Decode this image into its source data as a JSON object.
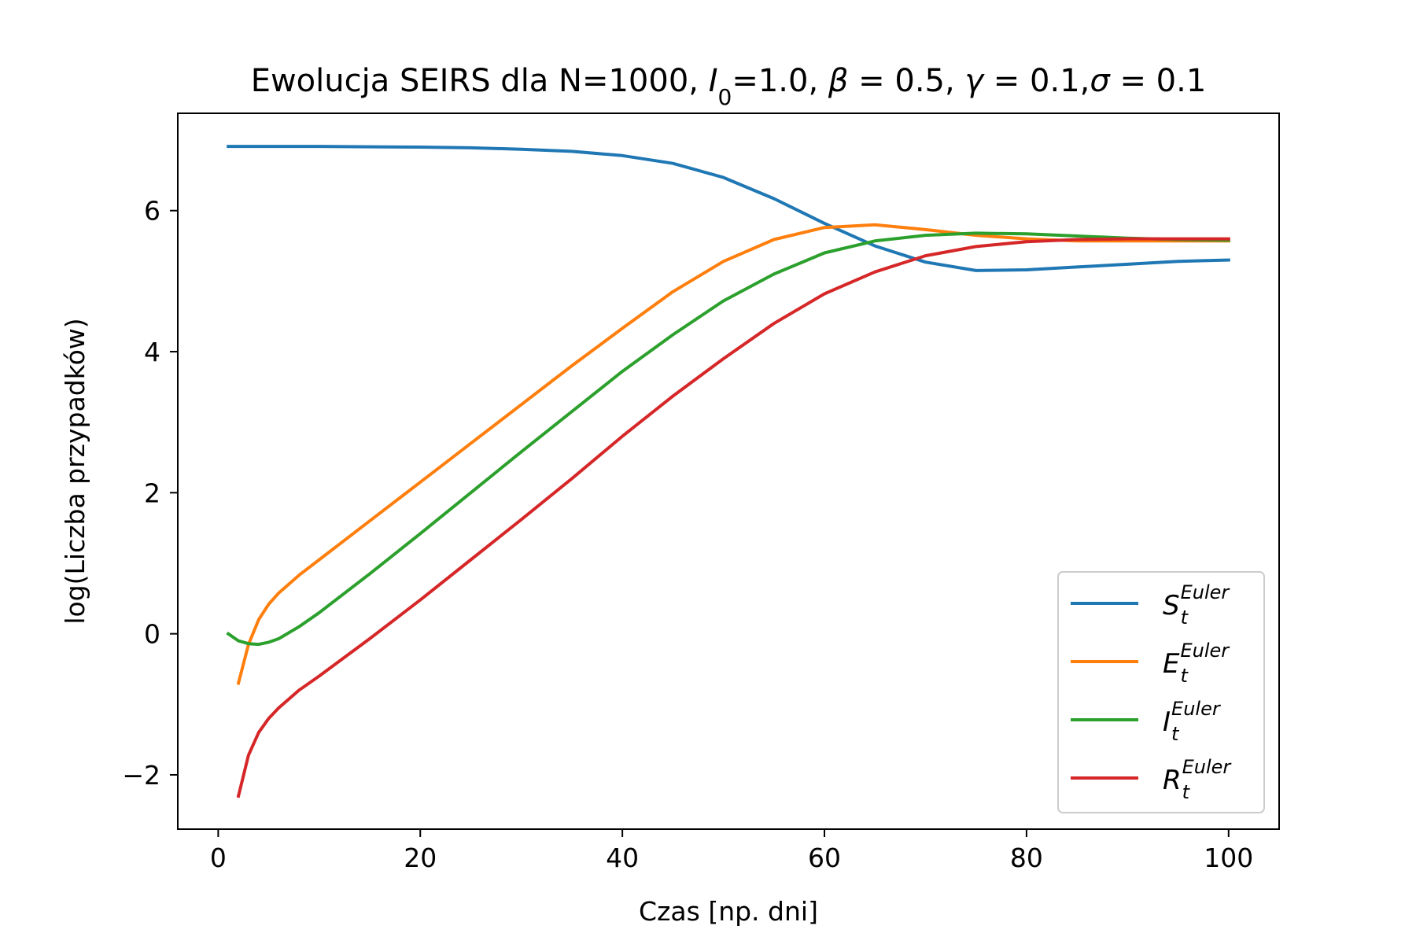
{
  "chart_data": {
    "type": "line",
    "title_parts": [
      {
        "t": "Ewolucja SEIRS dla N=1000, ",
        "i": false
      },
      {
        "t": "I",
        "i": true
      },
      {
        "t": "0",
        "i": false,
        "sub": true
      },
      {
        "t": "=1.0, ",
        "i": false
      },
      {
        "t": "β",
        "i": true
      },
      {
        "t": " = 0.5, ",
        "i": false
      },
      {
        "t": "γ",
        "i": true
      },
      {
        "t": " = 0.1,",
        "i": false
      },
      {
        "t": "σ",
        "i": true
      },
      {
        "t": " = 0.1",
        "i": false
      }
    ],
    "xlabel": "Czas [np. dni]",
    "ylabel": "log(Liczba przypadków)",
    "xlim": [
      -4,
      105
    ],
    "ylim": [
      -2.77,
      7.38
    ],
    "xticks": [
      0,
      20,
      40,
      60,
      80,
      100
    ],
    "yticks": [
      -2,
      0,
      2,
      4,
      6
    ],
    "ytick_labels": [
      "−2",
      "0",
      "2",
      "4",
      "6"
    ],
    "grid": false,
    "legend_position": "lower-right",
    "series": [
      {
        "name": "S",
        "sub": "t",
        "sup": "Euler",
        "color": "#1f77b4",
        "points": [
          [
            1,
            6.91
          ],
          [
            5,
            6.91
          ],
          [
            10,
            6.91
          ],
          [
            15,
            6.905
          ],
          [
            20,
            6.9
          ],
          [
            25,
            6.89
          ],
          [
            30,
            6.87
          ],
          [
            35,
            6.84
          ],
          [
            40,
            6.78
          ],
          [
            45,
            6.67
          ],
          [
            50,
            6.47
          ],
          [
            55,
            6.17
          ],
          [
            60,
            5.82
          ],
          [
            65,
            5.5
          ],
          [
            70,
            5.27
          ],
          [
            75,
            5.15
          ],
          [
            80,
            5.16
          ],
          [
            85,
            5.2
          ],
          [
            90,
            5.24
          ],
          [
            95,
            5.28
          ],
          [
            100,
            5.3
          ]
        ]
      },
      {
        "name": "E",
        "sub": "t",
        "sup": "Euler",
        "color": "#ff7f0e",
        "points": [
          [
            2,
            -0.7
          ],
          [
            3,
            -0.15
          ],
          [
            4,
            0.2
          ],
          [
            5,
            0.42
          ],
          [
            6,
            0.58
          ],
          [
            8,
            0.83
          ],
          [
            10,
            1.05
          ],
          [
            15,
            1.6
          ],
          [
            20,
            2.15
          ],
          [
            25,
            2.7
          ],
          [
            30,
            3.25
          ],
          [
            35,
            3.8
          ],
          [
            40,
            4.33
          ],
          [
            45,
            4.85
          ],
          [
            50,
            5.28
          ],
          [
            55,
            5.59
          ],
          [
            60,
            5.76
          ],
          [
            65,
            5.8
          ],
          [
            70,
            5.73
          ],
          [
            75,
            5.65
          ],
          [
            80,
            5.6
          ],
          [
            85,
            5.57
          ],
          [
            90,
            5.57
          ],
          [
            95,
            5.57
          ],
          [
            100,
            5.57
          ]
        ]
      },
      {
        "name": "I",
        "sub": "t",
        "sup": "Euler",
        "color": "#2ca02c",
        "points": [
          [
            1,
            0
          ],
          [
            2,
            -0.1
          ],
          [
            3,
            -0.14
          ],
          [
            4,
            -0.15
          ],
          [
            5,
            -0.12
          ],
          [
            6,
            -0.07
          ],
          [
            8,
            0.1
          ],
          [
            10,
            0.3
          ],
          [
            15,
            0.85
          ],
          [
            20,
            1.42
          ],
          [
            25,
            2.0
          ],
          [
            30,
            2.58
          ],
          [
            35,
            3.15
          ],
          [
            40,
            3.72
          ],
          [
            45,
            4.24
          ],
          [
            50,
            4.72
          ],
          [
            55,
            5.1
          ],
          [
            60,
            5.4
          ],
          [
            65,
            5.57
          ],
          [
            70,
            5.65
          ],
          [
            75,
            5.68
          ],
          [
            80,
            5.67
          ],
          [
            85,
            5.64
          ],
          [
            90,
            5.61
          ],
          [
            95,
            5.59
          ],
          [
            100,
            5.58
          ]
        ]
      },
      {
        "name": "R",
        "sub": "t",
        "sup": "Euler",
        "color": "#d62728",
        "points": [
          [
            2,
            -2.3
          ],
          [
            3,
            -1.72
          ],
          [
            4,
            -1.4
          ],
          [
            5,
            -1.2
          ],
          [
            6,
            -1.05
          ],
          [
            8,
            -0.8
          ],
          [
            10,
            -0.6
          ],
          [
            15,
            -0.07
          ],
          [
            20,
            0.48
          ],
          [
            25,
            1.05
          ],
          [
            30,
            1.62
          ],
          [
            35,
            2.2
          ],
          [
            40,
            2.8
          ],
          [
            45,
            3.37
          ],
          [
            50,
            3.9
          ],
          [
            55,
            4.4
          ],
          [
            60,
            4.82
          ],
          [
            65,
            5.13
          ],
          [
            70,
            5.36
          ],
          [
            75,
            5.49
          ],
          [
            80,
            5.56
          ],
          [
            85,
            5.59
          ],
          [
            90,
            5.6
          ],
          [
            95,
            5.6
          ],
          [
            100,
            5.6
          ]
        ]
      }
    ]
  }
}
